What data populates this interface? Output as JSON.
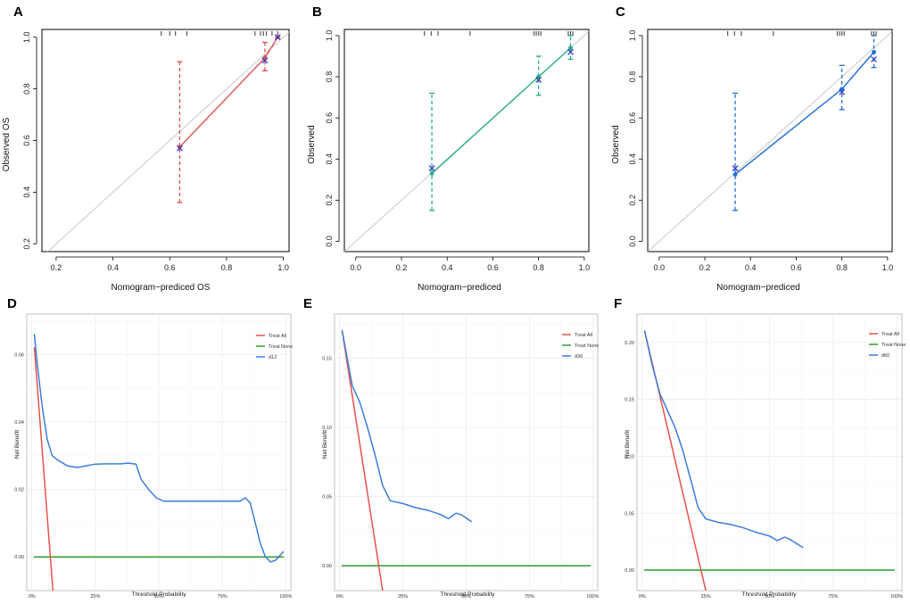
{
  "chart_data": [
    {
      "id": "A",
      "type": "calibration",
      "panel_label": "A",
      "xlabel": "Nomogram−prediced OS",
      "ylabel": "Observed OS",
      "xlim": [
        0.15,
        1.02
      ],
      "ylim": [
        0.17,
        1.03
      ],
      "xticks": [
        0.2,
        0.4,
        0.6,
        0.8,
        1.0
      ],
      "xtick_labels": [
        "0.2",
        "0.4",
        "0.6",
        "0.8",
        "1.0"
      ],
      "yticks": [
        0.2,
        0.4,
        0.6,
        0.8,
        1.0
      ],
      "ytick_labels": [
        "0.2",
        "0.4",
        "0.6",
        "0.8",
        "1.0"
      ],
      "color": "#e0504f",
      "points": [
        {
          "x": 0.635,
          "y": 0.575,
          "lo": 0.36,
          "hi": 0.905,
          "ref": 0.57
        },
        {
          "x": 0.935,
          "y": 0.92,
          "lo": 0.87,
          "hi": 0.98,
          "ref": 0.91
        },
        {
          "x": 0.98,
          "y": 1.0,
          "lo": 1.0,
          "hi": 1.0,
          "ref": 1.0
        }
      ],
      "rug": [
        0.57,
        0.6,
        0.62,
        0.66,
        0.9,
        0.92,
        0.93,
        0.94,
        0.96,
        0.98
      ]
    },
    {
      "id": "B",
      "type": "calibration",
      "panel_label": "B",
      "xlabel": "Nomogram−prediced",
      "ylabel": "Observed",
      "xlim": [
        -0.05,
        1.02
      ],
      "ylim": [
        -0.05,
        1.03
      ],
      "xticks": [
        0.0,
        0.2,
        0.4,
        0.6,
        0.8,
        1.0
      ],
      "xtick_labels": [
        "0.0",
        "0.2",
        "0.4",
        "0.6",
        "0.8",
        "1.0"
      ],
      "yticks": [
        0.0,
        0.2,
        0.4,
        0.6,
        0.8,
        1.0
      ],
      "ytick_labels": [
        "0.0",
        "0.2",
        "0.4",
        "0.6",
        "0.8",
        "1.0"
      ],
      "color": "#27ae84",
      "points": [
        {
          "x": 0.333,
          "y": 0.33,
          "lo": 0.15,
          "hi": 0.72,
          "ref": 0.355
        },
        {
          "x": 0.8,
          "y": 0.8,
          "lo": 0.71,
          "hi": 0.9,
          "ref": 0.785
        },
        {
          "x": 0.94,
          "y": 0.94,
          "lo": 0.885,
          "hi": 1.0,
          "ref": 0.92
        }
      ],
      "rug": [
        0.3,
        0.33,
        0.36,
        0.5,
        0.78,
        0.79,
        0.8,
        0.81,
        0.93,
        0.94,
        0.95
      ]
    },
    {
      "id": "C",
      "type": "calibration",
      "panel_label": "C",
      "xlabel": "Nomogram−prediced",
      "ylabel": "Observed",
      "xlim": [
        -0.05,
        1.02
      ],
      "ylim": [
        -0.05,
        1.03
      ],
      "xticks": [
        0.0,
        0.2,
        0.4,
        0.6,
        0.8,
        1.0
      ],
      "xtick_labels": [
        "0.0",
        "0.2",
        "0.4",
        "0.6",
        "0.8",
        "1.0"
      ],
      "yticks": [
        0.0,
        0.2,
        0.4,
        0.6,
        0.8,
        1.0
      ],
      "ytick_labels": [
        "0.0",
        "0.2",
        "0.4",
        "0.6",
        "0.8",
        "1.0"
      ],
      "color": "#1e6fd6",
      "points": [
        {
          "x": 0.333,
          "y": 0.325,
          "lo": 0.15,
          "hi": 0.72,
          "ref": 0.355
        },
        {
          "x": 0.8,
          "y": 0.74,
          "lo": 0.64,
          "hi": 0.855,
          "ref": 0.725
        },
        {
          "x": 0.94,
          "y": 0.92,
          "lo": 0.845,
          "hi": 1.0,
          "ref": 0.885
        }
      ],
      "rug": [
        0.3,
        0.33,
        0.36,
        0.5,
        0.78,
        0.79,
        0.8,
        0.81,
        0.93,
        0.94,
        0.95
      ]
    },
    {
      "id": "D",
      "type": "line",
      "panel_label": "D",
      "xlabel": "Threshold Probability",
      "ylabel": "Net Benefit",
      "xlim": [
        -0.02,
        1.02
      ],
      "ylim": [
        -0.01,
        0.072
      ],
      "xticks": [
        0,
        0.25,
        0.5,
        0.75,
        1.0
      ],
      "xtick_labels": [
        "0%",
        "25%",
        "50%",
        "75%",
        "100%"
      ],
      "yticks": [
        0.0,
        0.02,
        0.04,
        0.06
      ],
      "ytick_labels": [
        "0.00",
        "0.02",
        "0.04",
        "0.06"
      ],
      "legend": [
        "Treat All",
        "Treat None",
        "d12"
      ],
      "series": [
        {
          "name": "Treat All",
          "color": "#e8524a",
          "points": [
            [
              0.01,
              0.062
            ],
            [
              0.085,
              -0.012
            ]
          ]
        },
        {
          "name": "Treat None",
          "color": "#2c9c2c",
          "points": [
            [
              0.01,
              0.0
            ],
            [
              0.99,
              0.0
            ]
          ]
        },
        {
          "name": "d12",
          "color": "#3b7ddd",
          "points": [
            [
              0.01,
              0.066
            ],
            [
              0.02,
              0.058
            ],
            [
              0.04,
              0.045
            ],
            [
              0.06,
              0.035
            ],
            [
              0.08,
              0.03
            ],
            [
              0.1,
              0.0288
            ],
            [
              0.14,
              0.027
            ],
            [
              0.18,
              0.0265
            ],
            [
              0.25,
              0.0275
            ],
            [
              0.3,
              0.0276
            ],
            [
              0.35,
              0.0276
            ],
            [
              0.38,
              0.0278
            ],
            [
              0.41,
              0.0275
            ],
            [
              0.43,
              0.023
            ],
            [
              0.46,
              0.02
            ],
            [
              0.49,
              0.0175
            ],
            [
              0.52,
              0.0165
            ],
            [
              0.6,
              0.0165
            ],
            [
              0.7,
              0.0165
            ],
            [
              0.82,
              0.0165
            ],
            [
              0.84,
              0.0175
            ],
            [
              0.86,
              0.016
            ],
            [
              0.88,
              0.01
            ],
            [
              0.9,
              0.004
            ],
            [
              0.92,
              0.0
            ],
            [
              0.94,
              -0.0015
            ],
            [
              0.96,
              -0.001
            ],
            [
              0.99,
              0.0015
            ]
          ]
        }
      ]
    },
    {
      "id": "E",
      "type": "line",
      "panel_label": "E",
      "xlabel": "Threshold Probability",
      "ylabel": "Net Benefit",
      "xlim": [
        -0.02,
        1.02
      ],
      "ylim": [
        -0.018,
        0.182
      ],
      "xticks": [
        0,
        0.25,
        0.5,
        0.75,
        1.0
      ],
      "xtick_labels": [
        "0%",
        "25%",
        "50%",
        "75%",
        "100%"
      ],
      "yticks": [
        0.0,
        0.05,
        0.1,
        0.15
      ],
      "ytick_labels": [
        "0.00",
        "0.05",
        "0.10",
        "0.15"
      ],
      "legend": [
        "Treat All",
        "Treat None",
        "d36"
      ],
      "series": [
        {
          "name": "Treat All",
          "color": "#e8524a",
          "points": [
            [
              0.01,
              0.17
            ],
            [
              0.17,
              -0.018
            ]
          ]
        },
        {
          "name": "Treat None",
          "color": "#2c9c2c",
          "points": [
            [
              0.01,
              0.0
            ],
            [
              0.99,
              0.0
            ]
          ]
        },
        {
          "name": "d36",
          "color": "#3b7ddd",
          "points": [
            [
              0.01,
              0.17
            ],
            [
              0.03,
              0.15
            ],
            [
              0.05,
              0.13
            ],
            [
              0.08,
              0.118
            ],
            [
              0.11,
              0.1
            ],
            [
              0.14,
              0.08
            ],
            [
              0.17,
              0.058
            ],
            [
              0.2,
              0.047
            ],
            [
              0.25,
              0.045
            ],
            [
              0.3,
              0.042
            ],
            [
              0.35,
              0.04
            ],
            [
              0.4,
              0.037
            ],
            [
              0.43,
              0.034
            ],
            [
              0.46,
              0.038
            ],
            [
              0.48,
              0.037
            ],
            [
              0.52,
              0.032
            ]
          ]
        }
      ]
    },
    {
      "id": "F",
      "type": "line",
      "panel_label": "F",
      "xlabel": "Threshold Probability",
      "ylabel": "Net Benefit",
      "xlim": [
        -0.02,
        1.02
      ],
      "ylim": [
        -0.018,
        0.225
      ],
      "xticks": [
        0,
        0.25,
        0.5,
        0.75,
        1.0
      ],
      "xtick_labels": [
        "0%",
        "25%",
        "50%",
        "75%",
        "100%"
      ],
      "yticks": [
        0.0,
        0.05,
        0.1,
        0.15,
        0.2
      ],
      "ytick_labels": [
        "0.00",
        "0.05",
        "0.10",
        "0.15",
        "0.20"
      ],
      "legend": [
        "Treat All",
        "Treat None",
        "d60"
      ],
      "series": [
        {
          "name": "Treat All",
          "color": "#e8524a",
          "points": [
            [
              0.01,
              0.21
            ],
            [
              0.25,
              -0.018
            ]
          ]
        },
        {
          "name": "Treat None",
          "color": "#2c9c2c",
          "points": [
            [
              0.01,
              0.0
            ],
            [
              0.99,
              0.0
            ]
          ]
        },
        {
          "name": "d60",
          "color": "#3b7ddd",
          "points": [
            [
              0.01,
              0.21
            ],
            [
              0.04,
              0.18
            ],
            [
              0.07,
              0.155
            ],
            [
              0.1,
              0.14
            ],
            [
              0.13,
              0.125
            ],
            [
              0.16,
              0.105
            ],
            [
              0.19,
              0.08
            ],
            [
              0.22,
              0.055
            ],
            [
              0.25,
              0.045
            ],
            [
              0.3,
              0.042
            ],
            [
              0.35,
              0.04
            ],
            [
              0.4,
              0.037
            ],
            [
              0.45,
              0.033
            ],
            [
              0.5,
              0.03
            ],
            [
              0.53,
              0.026
            ],
            [
              0.56,
              0.029
            ],
            [
              0.58,
              0.027
            ],
            [
              0.63,
              0.02
            ]
          ]
        }
      ]
    }
  ]
}
